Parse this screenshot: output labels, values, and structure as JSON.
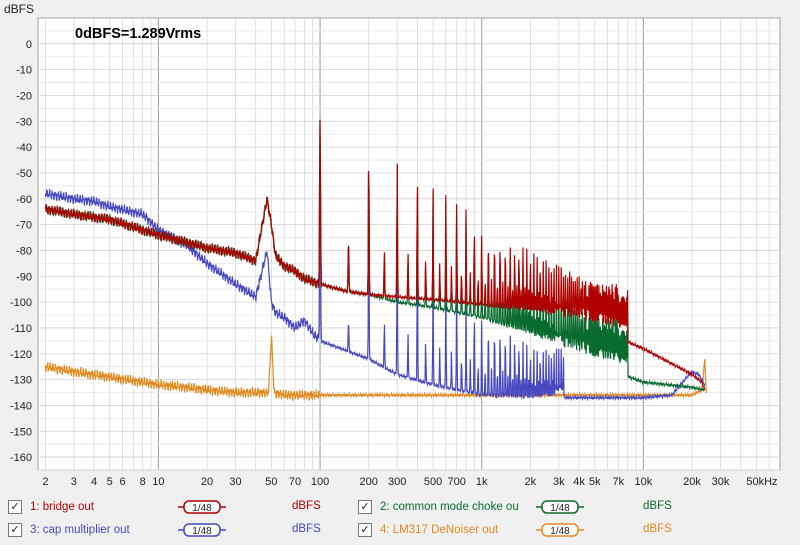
{
  "chart_data": {
    "type": "line",
    "annotation": "0dBFS=1.289Vrms",
    "ylabel": "dBFS",
    "xlabel": "",
    "x_scale": "log",
    "ylim": [
      -165,
      10
    ],
    "xlim": [
      1.8,
      70000
    ],
    "y_ticks": [
      "0",
      "-10",
      "-20",
      "-30",
      "-40",
      "-50",
      "-60",
      "-70",
      "-80",
      "-90",
      "-100",
      "-110",
      "-120",
      "-130",
      "-140",
      "-150",
      "-160"
    ],
    "x_ticks": [
      "2",
      "3",
      "4",
      "5",
      "6",
      "8",
      "10",
      "20",
      "30",
      "50",
      "70",
      "100",
      "200",
      "300",
      "500",
      "700",
      "1k",
      "2k",
      "3k",
      "4k",
      "5k",
      "7k",
      "10k",
      "20k",
      "30k",
      "50kHz"
    ],
    "grid": true,
    "series": [
      {
        "name": "1: bridge out",
        "color": "#b00000",
        "smoothing": "1/48",
        "unit": "dBFS",
        "x": [
          2,
          3,
          5,
          10,
          20,
          30,
          40,
          47,
          50,
          53,
          60,
          70,
          80,
          90,
          100,
          150,
          200,
          300,
          500,
          1000,
          2000,
          5000,
          10000,
          20000,
          23000,
          24000
        ],
        "y": [
          -64,
          -66,
          -68,
          -74,
          -79,
          -81,
          -84,
          -60,
          -70,
          -82,
          -86,
          -88,
          -91,
          -92,
          -93,
          -96,
          -97,
          -98,
          -99,
          -101,
          -103,
          -110,
          -118,
          -128,
          -131,
          -134
        ],
        "peaks": [
          [
            100,
            -29
          ],
          [
            200,
            -41
          ],
          [
            300,
            -45
          ],
          [
            400,
            -51
          ],
          [
            500,
            -56
          ],
          [
            600,
            -57
          ],
          [
            700,
            -61
          ],
          [
            800,
            -64
          ],
          [
            900,
            -67
          ],
          [
            1000,
            -70
          ],
          [
            1500,
            -76
          ],
          [
            2000,
            -80
          ],
          [
            3000,
            -86
          ],
          [
            5000,
            -93
          ]
        ]
      },
      {
        "name": "2: common mode choke ou",
        "color": "#0a6b2f",
        "smoothing": "1/48",
        "unit": "dBFS",
        "x": [
          2,
          3,
          5,
          10,
          20,
          30,
          40,
          47,
          50,
          53,
          60,
          70,
          80,
          90,
          100,
          150,
          200,
          300,
          500,
          1000,
          2000,
          5000,
          10000,
          20000,
          24000
        ],
        "y": [
          -64,
          -66,
          -68,
          -74,
          -79,
          -81,
          -84,
          -60,
          -70,
          -82,
          -86,
          -88,
          -91,
          -92,
          -93,
          -96,
          -97,
          -100,
          -102,
          -106,
          -112,
          -124,
          -131,
          -133,
          -134
        ],
        "peaks": [
          [
            100,
            -29
          ],
          [
            200,
            -41
          ],
          [
            300,
            -46
          ],
          [
            400,
            -51
          ],
          [
            500,
            -57
          ],
          [
            600,
            -60
          ],
          [
            700,
            -64
          ],
          [
            800,
            -67
          ],
          [
            900,
            -70
          ],
          [
            1000,
            -73
          ],
          [
            1500,
            -80
          ],
          [
            2000,
            -88
          ],
          [
            3000,
            -96
          ],
          [
            5000,
            -106
          ]
        ]
      },
      {
        "name": "3: cap multiplier out",
        "color": "#4848c0",
        "smoothing": "1/48",
        "unit": "dBFS",
        "x": [
          2,
          3,
          4,
          5,
          8,
          10,
          15,
          20,
          30,
          40,
          47,
          50,
          53,
          60,
          70,
          80,
          90,
          100,
          200,
          300,
          500,
          1000,
          2000,
          3000,
          5000,
          10000,
          15000,
          18000,
          20000,
          22000,
          24000
        ],
        "y": [
          -58,
          -60,
          -61,
          -63,
          -66,
          -72,
          -78,
          -85,
          -93,
          -98,
          -80,
          -100,
          -104,
          -106,
          -110,
          -107,
          -112,
          -115,
          -122,
          -128,
          -132,
          -136,
          -137,
          -137,
          -137,
          -137,
          -136,
          -130,
          -127,
          -128,
          -132
        ],
        "peaks": [
          [
            100,
            -50
          ],
          [
            150,
            -85
          ],
          [
            200,
            -70
          ],
          [
            300,
            -75
          ],
          [
            400,
            -82
          ],
          [
            500,
            -87
          ],
          [
            600,
            -90
          ],
          [
            700,
            -93
          ],
          [
            800,
            -97
          ],
          [
            900,
            -100
          ],
          [
            1000,
            -103
          ],
          [
            1500,
            -110
          ],
          [
            2000,
            -118
          ]
        ]
      },
      {
        "name": "4: LM317 DeNoiser out",
        "color": "#e08a20",
        "smoothing": "1/48",
        "unit": "dBFS",
        "x": [
          2,
          3,
          5,
          8,
          10,
          15,
          20,
          30,
          40,
          48,
          50,
          52,
          60,
          80,
          100,
          200,
          500,
          1000,
          5000,
          10000,
          20000,
          23000,
          24000,
          24500
        ],
        "y": [
          -125,
          -127,
          -129,
          -131,
          -132,
          -133,
          -134,
          -135,
          -135,
          -135,
          -113,
          -135,
          -136,
          -136,
          -136,
          -136,
          -136,
          -136,
          -136,
          -136,
          -136,
          -134,
          -122,
          -135
        ],
        "peaks": []
      }
    ]
  }
}
